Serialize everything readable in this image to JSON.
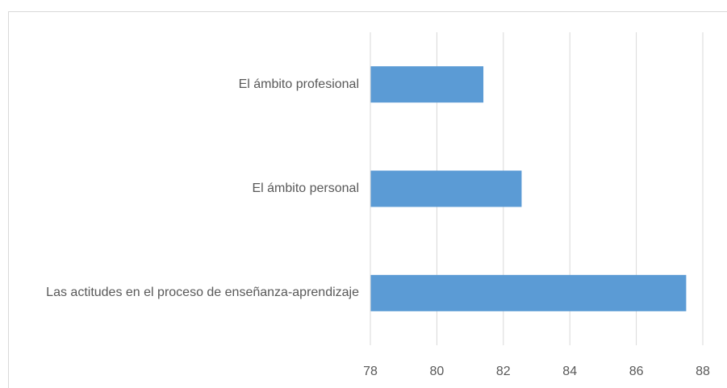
{
  "chart_data": {
    "type": "bar",
    "orientation": "horizontal",
    "categories": [
      "El ámbito profesional",
      "El ámbito personal",
      "Las actitudes en el proceso de enseñanza-aprendizaje"
    ],
    "values": [
      81.4,
      82.55,
      87.5
    ],
    "color": "#5b9bd5",
    "xlim": [
      78,
      88
    ],
    "xticks": [
      78,
      80,
      82,
      84,
      86,
      88
    ],
    "grid": true
  }
}
